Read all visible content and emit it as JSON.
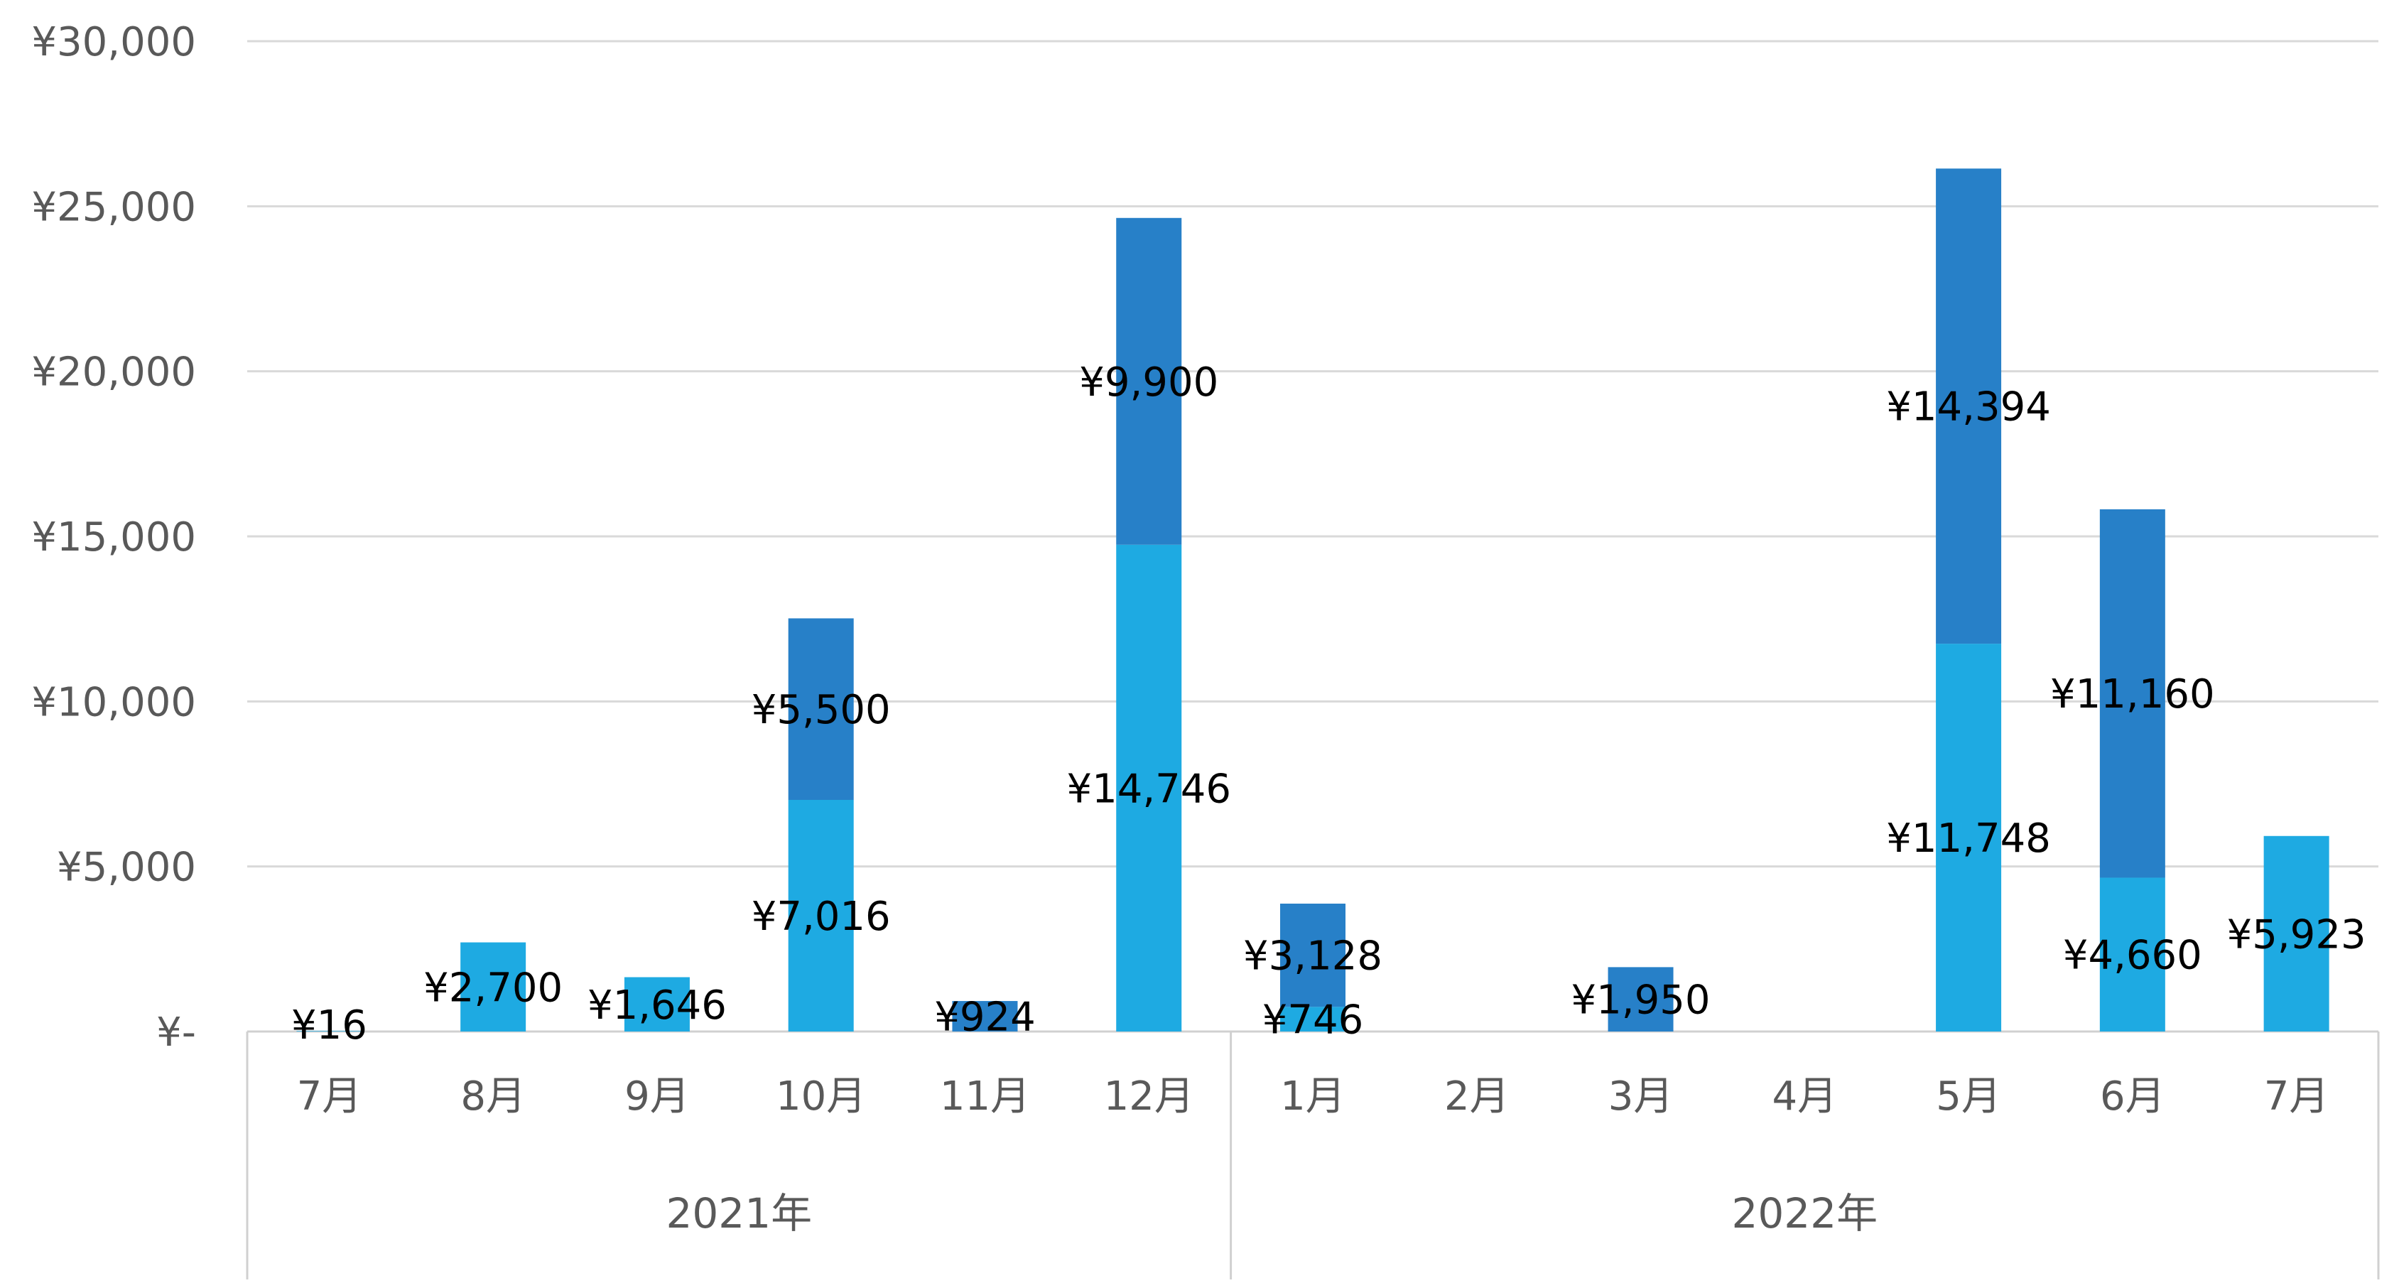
{
  "chart_data": {
    "type": "bar",
    "stacked": true,
    "categories": [
      "7月",
      "8月",
      "9月",
      "10月",
      "11月",
      "12月",
      "1月",
      "2月",
      "3月",
      "4月",
      "5月",
      "6月",
      "7月"
    ],
    "groups": [
      {
        "label": "2021年",
        "categories": [
          "7月",
          "8月",
          "9月",
          "10月",
          "11月",
          "12月"
        ]
      },
      {
        "label": "2022年",
        "categories": [
          "1月",
          "2月",
          "3月",
          "4月",
          "5月",
          "6月",
          "7月"
        ]
      }
    ],
    "series": [
      {
        "color": "#1EAAE2",
        "values": [
          16,
          2700,
          1646,
          7016,
          0,
          14746,
          746,
          0,
          0,
          0,
          11748,
          4660,
          5923
        ],
        "labels": [
          "¥16",
          "¥2,700",
          "¥1,646",
          "¥7,016",
          "",
          "¥14,746",
          "¥746",
          "",
          "",
          "",
          "¥11,748",
          "¥4,660",
          "¥5,923"
        ]
      },
      {
        "color": "#2780C8",
        "values": [
          0,
          0,
          0,
          5500,
          924,
          9900,
          3128,
          0,
          1950,
          0,
          14394,
          11160,
          0
        ],
        "labels": [
          "",
          "",
          "",
          "¥5,500",
          "¥924",
          "¥9,900",
          "¥3,128",
          "",
          "¥1,950",
          "",
          "¥14,394",
          "¥11,160",
          ""
        ]
      }
    ],
    "ylim": [
      0,
      30000
    ],
    "yticks": [
      {
        "value": 0,
        "label": "¥-"
      },
      {
        "value": 5000,
        "label": "¥5,000"
      },
      {
        "value": 10000,
        "label": "¥10,000"
      },
      {
        "value": 15000,
        "label": "¥15,000"
      },
      {
        "value": 20000,
        "label": "¥20,000"
      },
      {
        "value": 25000,
        "label": "¥25,000"
      },
      {
        "value": 30000,
        "label": "¥30,000"
      }
    ],
    "grid": true,
    "title": "",
    "xlabel": "",
    "ylabel": ""
  }
}
